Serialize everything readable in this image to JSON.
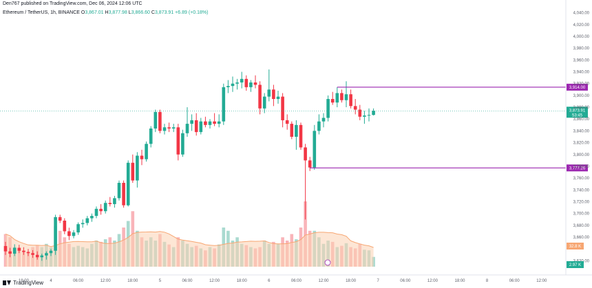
{
  "header": {
    "published": "Den767 published on TradingView.com, Dec 06, 2024 12:06 UTC"
  },
  "symbol": {
    "name": "Ethereum / TetherUS, 1h, BINANCE",
    "ohlc": [
      {
        "label": "O",
        "value": "3,867.01"
      },
      {
        "label": "H",
        "value": "3,877.98"
      },
      {
        "label": "L",
        "value": "3,866.60"
      },
      {
        "label": "C",
        "value": "3,873.91"
      }
    ],
    "change": "+6.89 (+0.18%)"
  },
  "footer": {
    "logo_text": "TradingView"
  },
  "colors": {
    "up": "#22ab94",
    "down": "#f23645",
    "vol_up": "#9bd3c8",
    "vol_down": "#f8a7ad",
    "level": "#9c27b0",
    "last": "#22ab94",
    "vol_ma": "#f7a672",
    "vol_ma_fill": "#fbd1b3"
  },
  "chart_data": {
    "type": "candlestick",
    "symbol": "ETHUSDT",
    "interval": "1h",
    "ylim": [
      3610,
      4050
    ],
    "y_ticks": [
      {
        "value": 4040,
        "label": "4,040.00"
      },
      {
        "value": 4020,
        "label": "4,020.00"
      },
      {
        "value": 4000,
        "label": "4,000.00"
      },
      {
        "value": 3980,
        "label": "3,980.00"
      },
      {
        "value": 3960,
        "label": "3,960.00"
      },
      {
        "value": 3940,
        "label": "3,940.00"
      },
      {
        "value": 3920,
        "label": "3,920.00"
      },
      {
        "value": 3900,
        "label": "3,900.00"
      },
      {
        "value": 3880,
        "label": "3,880.00"
      },
      {
        "value": 3860,
        "label": "3,860.00"
      },
      {
        "value": 3840,
        "label": "3,840.00"
      },
      {
        "value": 3820,
        "label": "3,820.00"
      },
      {
        "value": 3800,
        "label": "3,800.00"
      },
      {
        "value": 3780,
        "label": "3,780.00"
      },
      {
        "value": 3760,
        "label": "3,760.00"
      },
      {
        "value": 3740,
        "label": "3,740.00"
      },
      {
        "value": 3720,
        "label": "3,720.00"
      },
      {
        "value": 3700,
        "label": "3,700.00"
      },
      {
        "value": 3680,
        "label": "3,680.00"
      },
      {
        "value": 3660,
        "label": "3,660.00"
      },
      {
        "value": 3620,
        "label": "3,620.00"
      }
    ],
    "x_ticks": [
      {
        "index": 4,
        "label": "18:00"
      },
      {
        "index": 10,
        "label": "4"
      },
      {
        "index": 16,
        "label": "06:00"
      },
      {
        "index": 22,
        "label": "12:00"
      },
      {
        "index": 28,
        "label": "18:00"
      },
      {
        "index": 34,
        "label": "5"
      },
      {
        "index": 40,
        "label": "06:00"
      },
      {
        "index": 46,
        "label": "12:00"
      },
      {
        "index": 52,
        "label": "18:00"
      },
      {
        "index": 58,
        "label": "6"
      },
      {
        "index": 64,
        "label": "06:00"
      },
      {
        "index": 70,
        "label": "12:00"
      },
      {
        "index": 76,
        "label": "18:00"
      },
      {
        "index": 82,
        "label": "7"
      },
      {
        "index": 88,
        "label": "06:00"
      },
      {
        "index": 94,
        "label": "12:00"
      },
      {
        "index": 100,
        "label": "18:00"
      },
      {
        "index": 106,
        "label": "8"
      },
      {
        "index": 112,
        "label": "06:00"
      },
      {
        "index": 118,
        "label": "12:00"
      }
    ],
    "candles": [
      {
        "o": 3645,
        "h": 3652,
        "l": 3630,
        "c": 3636,
        "v": 0.5
      },
      {
        "o": 3636,
        "h": 3642,
        "l": 3626,
        "c": 3632,
        "v": 0.45
      },
      {
        "o": 3632,
        "h": 3648,
        "l": 3628,
        "c": 3642,
        "v": 0.3
      },
      {
        "o": 3642,
        "h": 3647,
        "l": 3633,
        "c": 3637,
        "v": 0.28
      },
      {
        "o": 3637,
        "h": 3643,
        "l": 3630,
        "c": 3635,
        "v": 0.25
      },
      {
        "o": 3635,
        "h": 3640,
        "l": 3628,
        "c": 3633,
        "v": 0.22
      },
      {
        "o": 3633,
        "h": 3638,
        "l": 3625,
        "c": 3630,
        "v": 0.3
      },
      {
        "o": 3630,
        "h": 3636,
        "l": 3622,
        "c": 3626,
        "v": 0.33
      },
      {
        "o": 3626,
        "h": 3632,
        "l": 3620,
        "c": 3629,
        "v": 0.3
      },
      {
        "o": 3629,
        "h": 3636,
        "l": 3622,
        "c": 3633,
        "v": 0.35
      },
      {
        "o": 3633,
        "h": 3640,
        "l": 3628,
        "c": 3637,
        "v": 0.3
      },
      {
        "o": 3637,
        "h": 3698,
        "l": 3630,
        "c": 3694,
        "v": 0.62
      },
      {
        "o": 3694,
        "h": 3698,
        "l": 3684,
        "c": 3688,
        "v": 0.55
      },
      {
        "o": 3688,
        "h": 3692,
        "l": 3665,
        "c": 3670,
        "v": 0.45
      },
      {
        "o": 3670,
        "h": 3676,
        "l": 3655,
        "c": 3662,
        "v": 0.35
      },
      {
        "o": 3662,
        "h": 3672,
        "l": 3658,
        "c": 3668,
        "v": 0.3
      },
      {
        "o": 3668,
        "h": 3685,
        "l": 3664,
        "c": 3682,
        "v": 0.32
      },
      {
        "o": 3682,
        "h": 3690,
        "l": 3676,
        "c": 3684,
        "v": 0.3
      },
      {
        "o": 3684,
        "h": 3696,
        "l": 3680,
        "c": 3692,
        "v": 0.28
      },
      {
        "o": 3692,
        "h": 3700,
        "l": 3686,
        "c": 3696,
        "v": 0.35
      },
      {
        "o": 3696,
        "h": 3712,
        "l": 3692,
        "c": 3708,
        "v": 0.4
      },
      {
        "o": 3708,
        "h": 3716,
        "l": 3698,
        "c": 3704,
        "v": 0.38
      },
      {
        "o": 3704,
        "h": 3722,
        "l": 3700,
        "c": 3718,
        "v": 0.42
      },
      {
        "o": 3718,
        "h": 3728,
        "l": 3712,
        "c": 3716,
        "v": 0.45
      },
      {
        "o": 3716,
        "h": 3730,
        "l": 3710,
        "c": 3726,
        "v": 0.4
      },
      {
        "o": 3726,
        "h": 3756,
        "l": 3722,
        "c": 3752,
        "v": 0.5
      },
      {
        "o": 3752,
        "h": 3756,
        "l": 3710,
        "c": 3714,
        "v": 0.6
      },
      {
        "o": 3714,
        "h": 3790,
        "l": 3712,
        "c": 3786,
        "v": 0.7
      },
      {
        "o": 3786,
        "h": 3800,
        "l": 3752,
        "c": 3756,
        "v": 0.85
      },
      {
        "o": 3756,
        "h": 3804,
        "l": 3744,
        "c": 3798,
        "v": 0.55
      },
      {
        "o": 3798,
        "h": 3808,
        "l": 3782,
        "c": 3792,
        "v": 0.45
      },
      {
        "o": 3792,
        "h": 3822,
        "l": 3788,
        "c": 3818,
        "v": 0.4
      },
      {
        "o": 3818,
        "h": 3848,
        "l": 3812,
        "c": 3844,
        "v": 0.45
      },
      {
        "o": 3844,
        "h": 3876,
        "l": 3838,
        "c": 3872,
        "v": 0.4
      },
      {
        "o": 3872,
        "h": 3876,
        "l": 3836,
        "c": 3840,
        "v": 0.5
      },
      {
        "o": 3840,
        "h": 3852,
        "l": 3834,
        "c": 3846,
        "v": 0.38
      },
      {
        "o": 3846,
        "h": 3854,
        "l": 3838,
        "c": 3844,
        "v": 0.34
      },
      {
        "o": 3844,
        "h": 3852,
        "l": 3838,
        "c": 3846,
        "v": 0.3
      },
      {
        "o": 3846,
        "h": 3852,
        "l": 3790,
        "c": 3800,
        "v": 0.45
      },
      {
        "o": 3800,
        "h": 3842,
        "l": 3796,
        "c": 3836,
        "v": 0.4
      },
      {
        "o": 3836,
        "h": 3880,
        "l": 3830,
        "c": 3852,
        "v": 0.35
      },
      {
        "o": 3852,
        "h": 3868,
        "l": 3840,
        "c": 3858,
        "v": 0.3
      },
      {
        "o": 3858,
        "h": 3870,
        "l": 3832,
        "c": 3838,
        "v": 0.32
      },
      {
        "o": 3838,
        "h": 3862,
        "l": 3834,
        "c": 3856,
        "v": 0.28
      },
      {
        "o": 3856,
        "h": 3864,
        "l": 3846,
        "c": 3850,
        "v": 0.25
      },
      {
        "o": 3850,
        "h": 3860,
        "l": 3844,
        "c": 3856,
        "v": 0.3
      },
      {
        "o": 3856,
        "h": 3870,
        "l": 3848,
        "c": 3852,
        "v": 0.28
      },
      {
        "o": 3852,
        "h": 3868,
        "l": 3846,
        "c": 3856,
        "v": 0.34
      },
      {
        "o": 3856,
        "h": 3920,
        "l": 3850,
        "c": 3914,
        "v": 0.6
      },
      {
        "o": 3914,
        "h": 3926,
        "l": 3904,
        "c": 3916,
        "v": 0.55
      },
      {
        "o": 3916,
        "h": 3932,
        "l": 3906,
        "c": 3920,
        "v": 0.4
      },
      {
        "o": 3920,
        "h": 3928,
        "l": 3910,
        "c": 3922,
        "v": 0.45
      },
      {
        "o": 3922,
        "h": 3940,
        "l": 3912,
        "c": 3928,
        "v": 0.35
      },
      {
        "o": 3928,
        "h": 3934,
        "l": 3908,
        "c": 3914,
        "v": 0.33
      },
      {
        "o": 3914,
        "h": 3926,
        "l": 3906,
        "c": 3922,
        "v": 0.3
      },
      {
        "o": 3922,
        "h": 3934,
        "l": 3912,
        "c": 3918,
        "v": 0.28
      },
      {
        "o": 3918,
        "h": 3924,
        "l": 3868,
        "c": 3878,
        "v": 0.3
      },
      {
        "o": 3878,
        "h": 3904,
        "l": 3870,
        "c": 3898,
        "v": 0.4
      },
      {
        "o": 3898,
        "h": 3944,
        "l": 3890,
        "c": 3910,
        "v": 0.35
      },
      {
        "o": 3910,
        "h": 3918,
        "l": 3882,
        "c": 3894,
        "v": 0.38
      },
      {
        "o": 3894,
        "h": 3908,
        "l": 3886,
        "c": 3898,
        "v": 0.35
      },
      {
        "o": 3898,
        "h": 3904,
        "l": 3846,
        "c": 3858,
        "v": 0.45
      },
      {
        "o": 3858,
        "h": 3868,
        "l": 3842,
        "c": 3852,
        "v": 0.4
      },
      {
        "o": 3852,
        "h": 3856,
        "l": 3826,
        "c": 3830,
        "v": 0.5
      },
      {
        "o": 3830,
        "h": 3858,
        "l": 3808,
        "c": 3850,
        "v": 0.42
      },
      {
        "o": 3850,
        "h": 3854,
        "l": 3808,
        "c": 3812,
        "v": 0.6
      },
      {
        "o": 3812,
        "h": 3818,
        "l": 3690,
        "c": 3790,
        "v": 1.0
      },
      {
        "o": 3790,
        "h": 3796,
        "l": 3772,
        "c": 3778,
        "v": 0.55
      },
      {
        "o": 3778,
        "h": 3850,
        "l": 3774,
        "c": 3840,
        "v": 0.55
      },
      {
        "o": 3840,
        "h": 3868,
        "l": 3834,
        "c": 3856,
        "v": 0.45
      },
      {
        "o": 3856,
        "h": 3870,
        "l": 3846,
        "c": 3862,
        "v": 0.35
      },
      {
        "o": 3862,
        "h": 3900,
        "l": 3856,
        "c": 3894,
        "v": 0.4
      },
      {
        "o": 3894,
        "h": 3906,
        "l": 3884,
        "c": 3888,
        "v": 0.38
      },
      {
        "o": 3888,
        "h": 3914,
        "l": 3880,
        "c": 3904,
        "v": 0.3
      },
      {
        "o": 3904,
        "h": 3910,
        "l": 3888,
        "c": 3892,
        "v": 0.32
      },
      {
        "o": 3892,
        "h": 3924,
        "l": 3880,
        "c": 3902,
        "v": 0.36
      },
      {
        "o": 3902,
        "h": 3910,
        "l": 3878,
        "c": 3882,
        "v": 0.3
      },
      {
        "o": 3882,
        "h": 3894,
        "l": 3868,
        "c": 3876,
        "v": 0.28
      },
      {
        "o": 3876,
        "h": 3884,
        "l": 3858,
        "c": 3864,
        "v": 0.35
      },
      {
        "o": 3864,
        "h": 3874,
        "l": 3852,
        "c": 3866,
        "v": 0.26
      },
      {
        "o": 3866,
        "h": 3878,
        "l": 3856,
        "c": 3867,
        "v": 0.25
      },
      {
        "o": 3867,
        "h": 3878,
        "l": 3866,
        "c": 3874,
        "v": 0.15
      }
    ],
    "levels": [
      {
        "name": "resistance",
        "value": 3914.0,
        "label": "3,914.00",
        "start_index": 73
      },
      {
        "name": "support",
        "value": 3777.26,
        "label": "3,777.26",
        "start_index": 67
      }
    ],
    "last_price": {
      "value": 3873.91,
      "label": "3,873.91",
      "countdown": "53:45"
    },
    "volume": {
      "ma_label": "32.8 K",
      "current_label": "2.97 K"
    }
  }
}
